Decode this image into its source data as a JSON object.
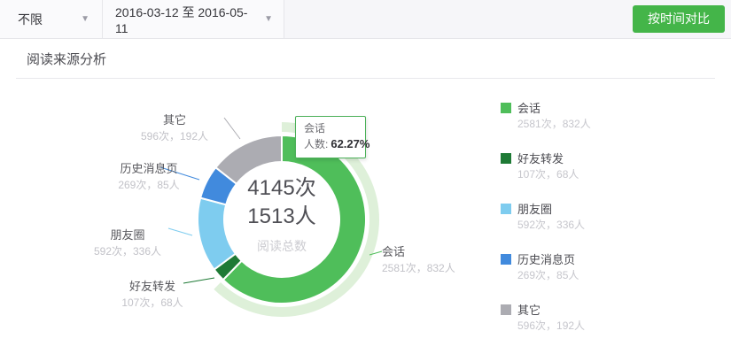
{
  "colors": {
    "accent_green": "#44b549",
    "tooltip_border": "#4db15a",
    "topbar_bg": "#f6f6f9"
  },
  "filter_bar": {
    "scope_dropdown": {
      "value": "不限"
    },
    "date_range_dropdown": {
      "value": "2016-03-12 至 2016-05-11"
    },
    "caret_icon": "▼",
    "compare_button_label": "按时间对比"
  },
  "section": {
    "title": "阅读来源分析"
  },
  "chart_data": {
    "type": "pie",
    "title": "阅读来源分析",
    "legend_position": "right",
    "total": {
      "reads": 4145,
      "readers": 1513
    },
    "center_label": {
      "reads": "4145次",
      "readers": "1513人",
      "caption": "阅读总数"
    },
    "series": [
      {
        "name": "会话",
        "reads": 2581,
        "readers": 832,
        "percent": 62.27,
        "counts_text": "2581次，832人",
        "color": "#4fbe5a",
        "selected": true,
        "halo_color": "#def0d9"
      },
      {
        "name": "好友转发",
        "reads": 107,
        "readers": 68,
        "percent": 2.58,
        "counts_text": "107次，68人",
        "color": "#1e7a35",
        "selected": false
      },
      {
        "name": "朋友圈",
        "reads": 592,
        "readers": 336,
        "percent": 14.28,
        "counts_text": "592次，336人",
        "color": "#7eccef",
        "selected": false
      },
      {
        "name": "历史消息页",
        "reads": 269,
        "readers": 85,
        "percent": 6.49,
        "counts_text": "269次，85人",
        "color": "#418add",
        "selected": false
      },
      {
        "name": "其它",
        "reads": 596,
        "readers": 192,
        "percent": 14.38,
        "counts_text": "596次，192人",
        "color": "#acacb2",
        "selected": false
      }
    ],
    "tooltip": {
      "title": "会话",
      "metric_label": "人数:",
      "value": "62.27%"
    }
  }
}
